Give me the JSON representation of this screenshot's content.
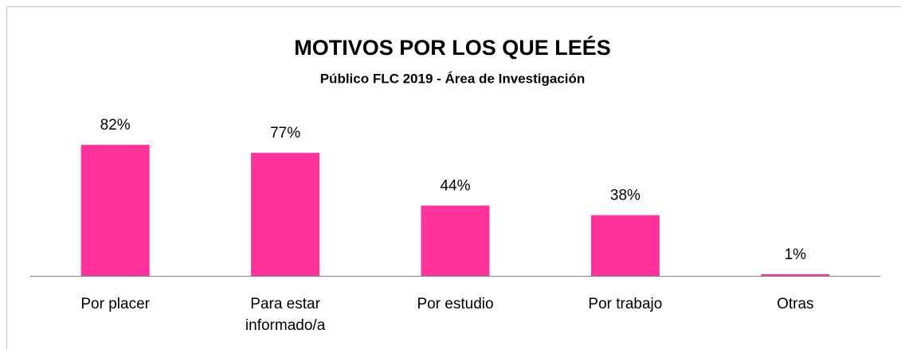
{
  "chart_data": {
    "type": "bar",
    "title": "MOTIVOS POR LOS QUE LEÉS",
    "subtitle": "Público FLC 2019 - Área de Investigación",
    "categories": [
      "Por placer",
      "Para estar informado/a",
      "Por estudio",
      "Por trabajo",
      "Otras"
    ],
    "values": [
      82,
      77,
      44,
      38,
      1
    ],
    "value_labels": [
      "82%",
      "77%",
      "44%",
      "38%",
      "1%"
    ],
    "color": "#ff3399"
  }
}
